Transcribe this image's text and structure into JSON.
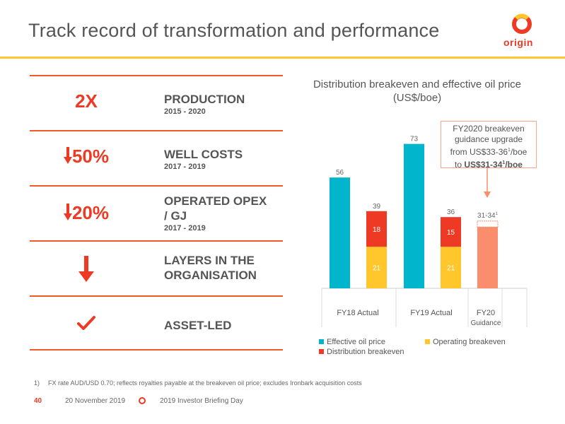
{
  "slide": {
    "title": "Track record of transformation and performance",
    "brand": "origin",
    "accent_color": "#ffc72c",
    "brand_color": "#ee3a24"
  },
  "metrics": [
    {
      "value": "2X",
      "label": "PRODUCTION",
      "sub": "2015 - 2020",
      "icon": null
    },
    {
      "value": "50%",
      "label": "WELL COSTS",
      "sub": "2017 - 2019",
      "icon": "down-arrow-icon"
    },
    {
      "value": "20%",
      "label": "OPERATED OPEX / GJ",
      "sub": "2017 - 2019",
      "icon": "down-arrow-icon"
    },
    {
      "value": "",
      "label": "LAYERS IN THE ORGANISATION",
      "sub": "",
      "icon": "down-arrow-icon"
    },
    {
      "value": "",
      "label": "ASSET-LED",
      "sub": "",
      "icon": "checkmark-icon"
    }
  ],
  "chart_data": {
    "type": "bar",
    "title": "Distribution breakeven and effective oil price (US$/boe)",
    "groups": [
      "FY18 Actual",
      "FY19 Actual",
      "FY20 Guidance"
    ],
    "series": [
      {
        "name": "Effective oil price",
        "color": "#00b5cc",
        "values": [
          56,
          73,
          null
        ]
      },
      {
        "name": "Operating breakeven",
        "color": "#ffc72c",
        "values": [
          21,
          21,
          null
        ]
      },
      {
        "name": "Distribution breakeven",
        "color": "#ee3a24",
        "values": [
          18,
          15,
          null
        ]
      }
    ],
    "stack_totals": [
      39,
      36
    ],
    "fy20_guidance": {
      "label": "31-34",
      "superscript": "1",
      "low": 31,
      "high": 34,
      "color": "#f98d6c"
    },
    "callout": {
      "line1": "FY2020 breakeven",
      "line2": "guidance upgrade",
      "line3": "from US$33-36",
      "line3_sup": "1",
      "line3_end": "/boe",
      "line4_prefix": "to ",
      "line4_bold": "US$31-34",
      "line4_sup": "1",
      "line4_end": "/boe"
    },
    "legend": [
      "Effective oil price",
      "Operating breakeven",
      "Distribution breakeven"
    ]
  },
  "footnote": {
    "num": "1)",
    "text": "FX rate AUD/USD 0.70; reflects royalties payable at the breakeven oil price; excludes Ironbark acquisition costs"
  },
  "footer": {
    "page": "40",
    "date": "20 November 2019",
    "event": "2019 Investor Briefing Day"
  }
}
